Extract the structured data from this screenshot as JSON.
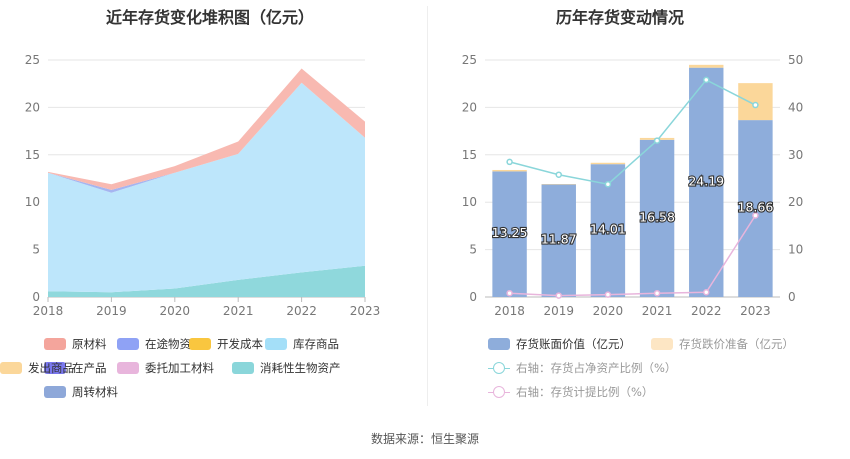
{
  "source_text": "数据来源：恒生聚源",
  "chart_data": [
    {
      "type": "area",
      "title": "近年存货变化堆积图（亿元）",
      "x": [
        "2018",
        "2019",
        "2020",
        "2021",
        "2022",
        "2023"
      ],
      "ylim": [
        0,
        25
      ],
      "yticks": [
        0,
        5,
        10,
        15,
        20,
        25
      ],
      "grid": true,
      "series": [
        {
          "name": "消耗性生物资产",
          "color": "#8fd8dc",
          "values": [
            0.6,
            0.5,
            0.9,
            1.8,
            2.6,
            3.3
          ]
        },
        {
          "name": "库存商品",
          "color": "#bde6fb",
          "values": [
            12.5,
            10.5,
            12.2,
            13.3,
            20.0,
            13.5
          ]
        },
        {
          "name": "在途物资",
          "color": "#a5b5f0",
          "values": [
            0.0,
            0.3,
            0.0,
            0.0,
            0.0,
            0.0
          ]
        },
        {
          "name": "原材料",
          "color": "#f8b9b1",
          "values": [
            0.1,
            0.6,
            0.7,
            1.3,
            1.5,
            1.7
          ]
        }
      ],
      "legend": {
        "position": "bottom",
        "items": [
          {
            "label": "原材料",
            "color": "#f4a59c"
          },
          {
            "label": "在途物资",
            "color": "#8fa2f5"
          },
          {
            "label": "开发成本",
            "color": "#f9c63f"
          },
          {
            "label": "库存商品",
            "color": "#a4dff8"
          },
          {
            "label": "在产品",
            "color": "#7a78ee"
          },
          {
            "label": "委托加工材料",
            "color": "#e8b5dc"
          },
          {
            "label": "消耗性生物资产",
            "color": "#8ad6da"
          },
          {
            "label": "发出商品",
            "color": "#fbd79a"
          },
          {
            "label": "周转材料",
            "color": "#8ea8d9"
          }
        ]
      }
    },
    {
      "type": "bar",
      "title": "历年存货变动情况",
      "categories": [
        "2018",
        "2019",
        "2020",
        "2021",
        "2022",
        "2023"
      ],
      "ylim": [
        0,
        25
      ],
      "yticks": [
        0,
        5,
        10,
        15,
        20,
        25
      ],
      "y2lim": [
        0,
        50
      ],
      "y2ticks": [
        0,
        10,
        20,
        30,
        40,
        50
      ],
      "grid": true,
      "series": [
        {
          "name": "存货账面价值（亿元）",
          "color": "#8eaddb",
          "values": [
            13.25,
            11.87,
            14.01,
            16.58,
            24.19,
            18.66
          ],
          "value_labels": [
            "13.25",
            "11.87",
            "14.01",
            "16.58",
            "24.19",
            "18.66"
          ]
        },
        {
          "name": "存货跌价准备（亿元）",
          "color": "#fbd79a",
          "values": [
            0.15,
            0.05,
            0.15,
            0.2,
            0.3,
            3.9
          ]
        },
        {
          "name": "右轴：存货占净资产比例（%）",
          "color": "#8ad6da",
          "axis": "right",
          "type": "line",
          "values": [
            28.5,
            25.8,
            23.8,
            33.0,
            45.8,
            40.5
          ]
        },
        {
          "name": "右轴：存货计提比例（%）",
          "color": "#e8b5dc",
          "axis": "right",
          "type": "line",
          "values": [
            0.8,
            0.3,
            0.5,
            0.8,
            1.0,
            17.2
          ]
        }
      ],
      "legend": {
        "position": "bottom",
        "items": [
          {
            "label": "存货账面价值（亿元）",
            "color": "#8eaddb",
            "kind": "box"
          },
          {
            "label": "存货跌价准备（亿元）",
            "color": "#fde6c4",
            "kind": "box",
            "muted": true
          },
          {
            "label": "右轴：存货占净资产比例（%）",
            "color": "#8ad6da",
            "kind": "line",
            "muted": true
          },
          {
            "label": "右轴：存货计提比例（%）",
            "color": "#e8b5dc",
            "kind": "line",
            "muted": true
          }
        ]
      }
    }
  ]
}
